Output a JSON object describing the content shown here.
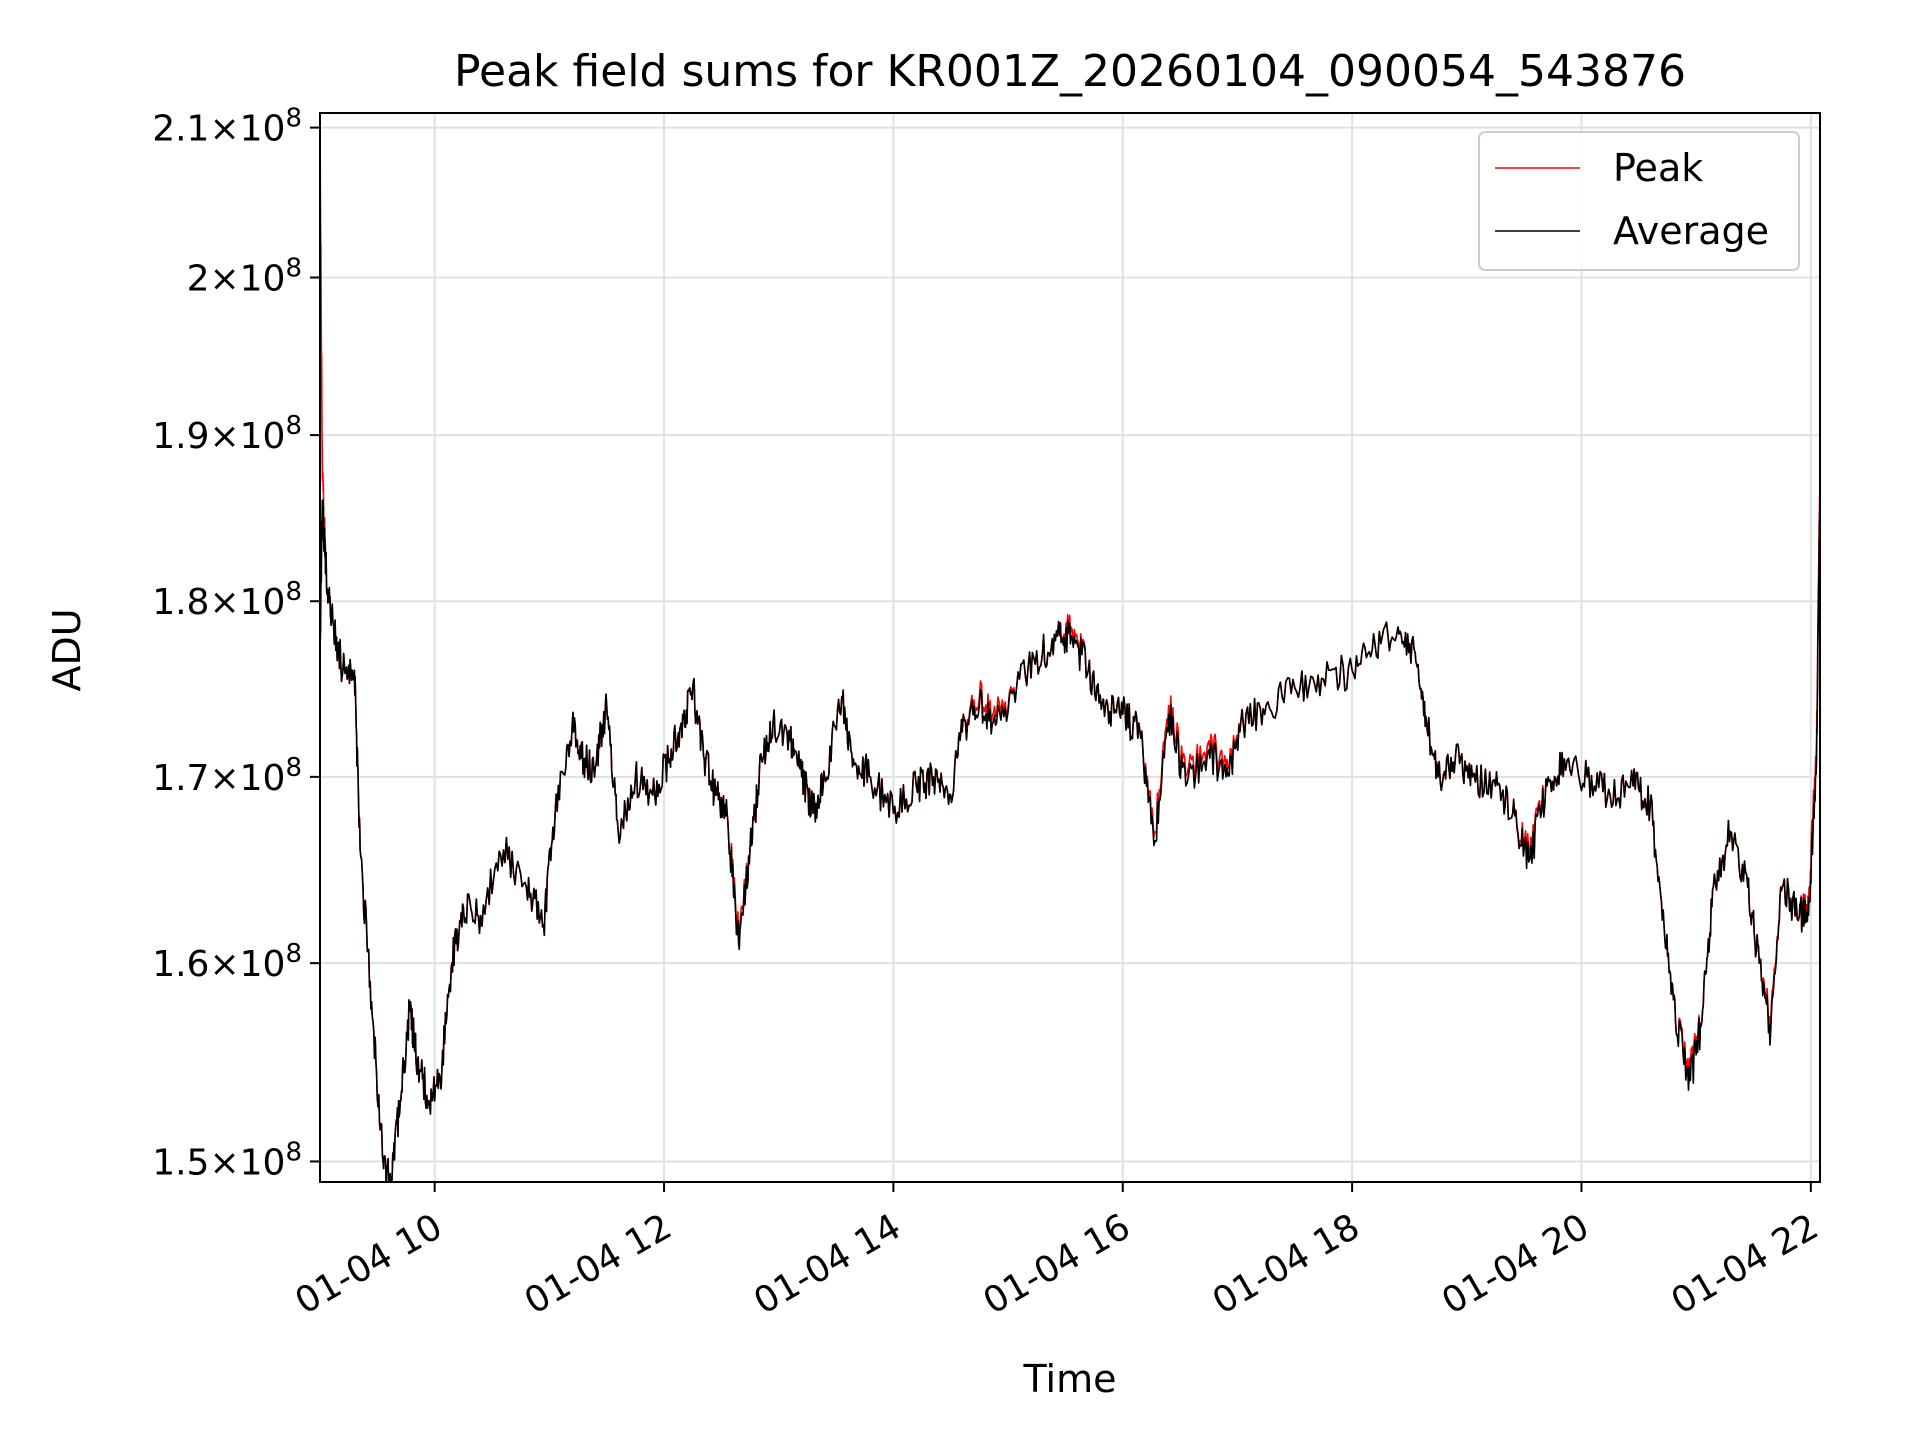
{
  "chart_data": {
    "type": "line",
    "title": "Peak field sums for KR001Z_20260104_090054_543876",
    "xlabel": "Time",
    "ylabel": "ADU",
    "x_unit": "hours",
    "xlim": [
      9.0,
      22.08
    ],
    "ylim": [
      149000000,
      211000000
    ],
    "y_scale": "log",
    "grid": true,
    "legend_position": "top-right",
    "x_ticks": [
      {
        "value": 10,
        "label": "01-04 10"
      },
      {
        "value": 12,
        "label": "01-04 12"
      },
      {
        "value": 14,
        "label": "01-04 14"
      },
      {
        "value": 16,
        "label": "01-04 16"
      },
      {
        "value": 18,
        "label": "01-04 18"
      },
      {
        "value": 20,
        "label": "01-04 20"
      },
      {
        "value": 22,
        "label": "01-04 22"
      }
    ],
    "y_ticks": [
      {
        "value": 150000000,
        "mant": "1.5",
        "exp": "8"
      },
      {
        "value": 160000000,
        "mant": "1.6",
        "exp": "8"
      },
      {
        "value": 170000000,
        "mant": "1.7",
        "exp": "8"
      },
      {
        "value": 180000000,
        "mant": "1.8",
        "exp": "8"
      },
      {
        "value": 190000000,
        "mant": "1.9",
        "exp": "8"
      },
      {
        "value": 200000000,
        "mant": "2",
        "exp": "8"
      },
      {
        "value": 210000000,
        "mant": "2.1",
        "exp": "8"
      }
    ],
    "series": [
      {
        "name": "Peak",
        "color": "#ff0000",
        "points": [
          [
            9.0,
            210000000
          ],
          [
            9.02,
            188000000
          ],
          [
            9.05,
            182000000
          ],
          [
            9.1,
            179000000
          ],
          [
            9.2,
            176000000
          ],
          [
            9.3,
            176000000
          ],
          [
            9.35,
            166000000
          ],
          [
            9.45,
            158000000
          ],
          [
            9.55,
            150000000
          ],
          [
            9.62,
            149000000
          ],
          [
            9.7,
            153000000
          ],
          [
            9.78,
            157500000
          ],
          [
            9.85,
            155000000
          ],
          [
            9.95,
            153000000
          ],
          [
            10.05,
            154000000
          ],
          [
            10.15,
            160000000
          ],
          [
            10.25,
            163000000
          ],
          [
            10.4,
            162500000
          ],
          [
            10.6,
            166000000
          ],
          [
            10.8,
            164000000
          ],
          [
            10.95,
            162000000
          ],
          [
            11.05,
            168000000
          ],
          [
            11.2,
            173000000
          ],
          [
            11.3,
            171000000
          ],
          [
            11.4,
            170500000
          ],
          [
            11.5,
            174000000
          ],
          [
            11.6,
            167000000
          ],
          [
            11.75,
            170000000
          ],
          [
            11.9,
            169000000
          ],
          [
            12.05,
            171000000
          ],
          [
            12.15,
            173000000
          ],
          [
            12.25,
            175000000
          ],
          [
            12.35,
            171000000
          ],
          [
            12.45,
            169000000
          ],
          [
            12.55,
            168000000
          ],
          [
            12.65,
            161500000
          ],
          [
            12.75,
            166000000
          ],
          [
            12.85,
            171000000
          ],
          [
            12.95,
            173000000
          ],
          [
            13.1,
            172000000
          ],
          [
            13.2,
            170000000
          ],
          [
            13.3,
            168000000
          ],
          [
            13.4,
            170000000
          ],
          [
            13.55,
            174500000
          ],
          [
            13.65,
            171000000
          ],
          [
            13.8,
            170000000
          ],
          [
            14.0,
            168000000
          ],
          [
            14.2,
            169500000
          ],
          [
            14.35,
            170000000
          ],
          [
            14.5,
            169000000
          ],
          [
            14.6,
            172500000
          ],
          [
            14.75,
            174500000
          ],
          [
            14.9,
            173500000
          ],
          [
            15.1,
            175500000
          ],
          [
            15.3,
            177000000
          ],
          [
            15.45,
            178000000
          ],
          [
            15.55,
            178500000
          ],
          [
            15.7,
            176000000
          ],
          [
            15.85,
            174000000
          ],
          [
            16.0,
            173500000
          ],
          [
            16.15,
            172500000
          ],
          [
            16.28,
            167000000
          ],
          [
            16.4,
            174000000
          ],
          [
            16.55,
            170000000
          ],
          [
            16.75,
            172000000
          ],
          [
            16.9,
            170500000
          ],
          [
            17.05,
            173000000
          ],
          [
            17.25,
            174000000
          ],
          [
            17.5,
            175000000
          ],
          [
            17.75,
            175500000
          ],
          [
            18.0,
            176000000
          ],
          [
            18.2,
            177500000
          ],
          [
            18.4,
            178500000
          ],
          [
            18.55,
            177000000
          ],
          [
            18.65,
            173000000
          ],
          [
            18.75,
            170000000
          ],
          [
            18.9,
            171000000
          ],
          [
            19.05,
            170000000
          ],
          [
            19.25,
            169500000
          ],
          [
            19.4,
            168000000
          ],
          [
            19.55,
            166000000
          ],
          [
            19.7,
            169500000
          ],
          [
            19.85,
            171000000
          ],
          [
            20.05,
            170000000
          ],
          [
            20.25,
            169000000
          ],
          [
            20.45,
            169500000
          ],
          [
            20.6,
            168500000
          ],
          [
            20.72,
            162000000
          ],
          [
            20.82,
            157000000
          ],
          [
            20.95,
            154500000
          ],
          [
            21.05,
            157000000
          ],
          [
            21.15,
            164000000
          ],
          [
            21.3,
            167000000
          ],
          [
            21.45,
            164000000
          ],
          [
            21.55,
            160000000
          ],
          [
            21.65,
            157000000
          ],
          [
            21.75,
            164000000
          ],
          [
            21.9,
            162500000
          ],
          [
            21.98,
            163000000
          ],
          [
            22.05,
            172000000
          ],
          [
            22.08,
            187500000
          ]
        ]
      },
      {
        "name": "Average",
        "color": "#000000",
        "points": [
          [
            9.0,
            177000000
          ],
          [
            9.02,
            186000000
          ],
          [
            9.05,
            182000000
          ],
          [
            9.1,
            179000000
          ],
          [
            9.2,
            176000000
          ],
          [
            9.3,
            176000000
          ],
          [
            9.35,
            166000000
          ],
          [
            9.45,
            158000000
          ],
          [
            9.55,
            150000000
          ],
          [
            9.62,
            149000000
          ],
          [
            9.7,
            153000000
          ],
          [
            9.78,
            157500000
          ],
          [
            9.85,
            155000000
          ],
          [
            9.95,
            153000000
          ],
          [
            10.05,
            154000000
          ],
          [
            10.15,
            160000000
          ],
          [
            10.25,
            163000000
          ],
          [
            10.4,
            162500000
          ],
          [
            10.6,
            166000000
          ],
          [
            10.8,
            164000000
          ],
          [
            10.95,
            162000000
          ],
          [
            11.05,
            168000000
          ],
          [
            11.2,
            173000000
          ],
          [
            11.3,
            171000000
          ],
          [
            11.4,
            170500000
          ],
          [
            11.5,
            174000000
          ],
          [
            11.6,
            167000000
          ],
          [
            11.75,
            170000000
          ],
          [
            11.9,
            169000000
          ],
          [
            12.05,
            171000000
          ],
          [
            12.15,
            173000000
          ],
          [
            12.25,
            175000000
          ],
          [
            12.35,
            171000000
          ],
          [
            12.45,
            169000000
          ],
          [
            12.55,
            168000000
          ],
          [
            12.65,
            161000000
          ],
          [
            12.75,
            166000000
          ],
          [
            12.85,
            171000000
          ],
          [
            12.95,
            173000000
          ],
          [
            13.1,
            172000000
          ],
          [
            13.2,
            170000000
          ],
          [
            13.3,
            168000000
          ],
          [
            13.4,
            170000000
          ],
          [
            13.55,
            174500000
          ],
          [
            13.65,
            171000000
          ],
          [
            13.8,
            170000000
          ],
          [
            14.0,
            168000000
          ],
          [
            14.2,
            169500000
          ],
          [
            14.35,
            170000000
          ],
          [
            14.5,
            169000000
          ],
          [
            14.6,
            172500000
          ],
          [
            14.75,
            174000000
          ],
          [
            14.9,
            173000000
          ],
          [
            15.1,
            175500000
          ],
          [
            15.3,
            177000000
          ],
          [
            15.45,
            178000000
          ],
          [
            15.55,
            178000000
          ],
          [
            15.7,
            176000000
          ],
          [
            15.85,
            174000000
          ],
          [
            16.0,
            173500000
          ],
          [
            16.15,
            172500000
          ],
          [
            16.28,
            166500000
          ],
          [
            16.4,
            173500000
          ],
          [
            16.55,
            169500000
          ],
          [
            16.75,
            171500000
          ],
          [
            16.9,
            170000000
          ],
          [
            17.05,
            173000000
          ],
          [
            17.25,
            174000000
          ],
          [
            17.5,
            175000000
          ],
          [
            17.75,
            175500000
          ],
          [
            18.0,
            176000000
          ],
          [
            18.2,
            177500000
          ],
          [
            18.4,
            178500000
          ],
          [
            18.55,
            177000000
          ],
          [
            18.65,
            173000000
          ],
          [
            18.75,
            170000000
          ],
          [
            18.9,
            171000000
          ],
          [
            19.05,
            170000000
          ],
          [
            19.25,
            169500000
          ],
          [
            19.4,
            168000000
          ],
          [
            19.55,
            165500000
          ],
          [
            19.7,
            169500000
          ],
          [
            19.85,
            171000000
          ],
          [
            20.05,
            170000000
          ],
          [
            20.25,
            169000000
          ],
          [
            20.45,
            169500000
          ],
          [
            20.6,
            168500000
          ],
          [
            20.72,
            162000000
          ],
          [
            20.82,
            157000000
          ],
          [
            20.95,
            154000000
          ],
          [
            21.05,
            157000000
          ],
          [
            21.15,
            164000000
          ],
          [
            21.3,
            167000000
          ],
          [
            21.45,
            164000000
          ],
          [
            21.55,
            160000000
          ],
          [
            21.65,
            156500000
          ],
          [
            21.75,
            164000000
          ],
          [
            21.9,
            162500000
          ],
          [
            21.98,
            162500000
          ],
          [
            22.05,
            171000000
          ],
          [
            22.08,
            186500000
          ]
        ]
      }
    ]
  }
}
